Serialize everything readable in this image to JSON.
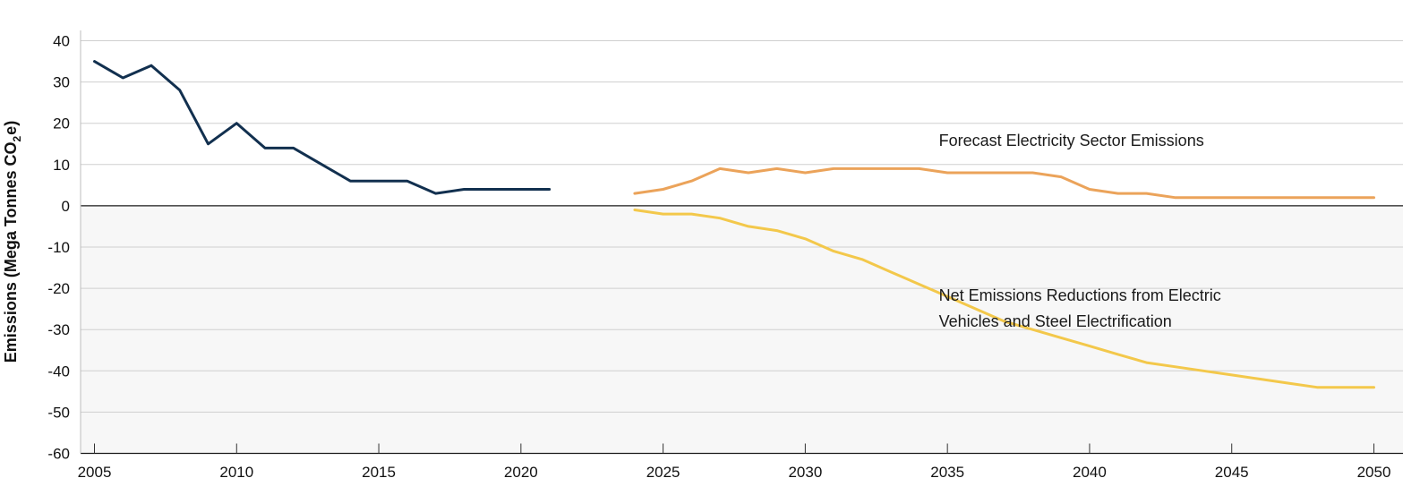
{
  "chart_data": {
    "type": "line",
    "title": "",
    "xlabel": "",
    "ylabel": {
      "main": "Emissions (Mega Tonnes CO",
      "subscript": "2",
      "end": "e)"
    },
    "xlim": [
      2005,
      2050
    ],
    "ylim": [
      -60,
      40
    ],
    "xticks": [
      2005,
      2010,
      2015,
      2020,
      2025,
      2030,
      2035,
      2040,
      2045,
      2050
    ],
    "yticks": [
      40,
      30,
      20,
      10,
      0,
      -10,
      -20,
      -30,
      -40,
      -50,
      -60
    ],
    "grid": true,
    "negative_region_shaded": true,
    "series": [
      {
        "name": "",
        "color": "#12304f",
        "x": [
          2005,
          2006,
          2007,
          2008,
          2009,
          2010,
          2011,
          2012,
          2013,
          2014,
          2015,
          2016,
          2017,
          2018,
          2019,
          2020,
          2021
        ],
        "y": [
          35,
          31,
          34,
          28,
          15,
          20,
          14,
          14,
          10,
          6,
          6,
          6,
          3,
          4,
          4,
          4,
          4
        ]
      },
      {
        "name": "Forecast Electricity Sector Emissions",
        "color": "#eba35a",
        "x": [
          2024,
          2025,
          2026,
          2027,
          2028,
          2029,
          2030,
          2031,
          2032,
          2033,
          2034,
          2035,
          2036,
          2037,
          2038,
          2039,
          2040,
          2041,
          2042,
          2043,
          2044,
          2045,
          2046,
          2047,
          2048,
          2049,
          2050
        ],
        "y": [
          3,
          4,
          6,
          9,
          8,
          9,
          8,
          9,
          9,
          9,
          9,
          8,
          8,
          8,
          8,
          7,
          4,
          3,
          3,
          2,
          2,
          2,
          2,
          2,
          2,
          2,
          2
        ]
      },
      {
        "name": "Net Emissions Reductions from Electric Vehicles and Steel Electrification",
        "color": "#f3c84b",
        "x": [
          2024,
          2025,
          2026,
          2027,
          2028,
          2029,
          2030,
          2031,
          2032,
          2033,
          2034,
          2035,
          2036,
          2037,
          2038,
          2039,
          2040,
          2041,
          2042,
          2043,
          2044,
          2045,
          2046,
          2047,
          2048,
          2049,
          2050
        ],
        "y": [
          -1,
          -2,
          -2,
          -3,
          -5,
          -6,
          -8,
          -11,
          -13,
          -16,
          -19,
          -22,
          -25,
          -28,
          -30,
          -32,
          -34,
          -36,
          -38,
          -39,
          -40,
          -41,
          -42,
          -43,
          -44,
          -44,
          -44
        ]
      }
    ],
    "annotations": [
      {
        "text": "Forecast Electricity Sector Emissions",
        "at_x": 2034.7,
        "at_y": 14.5
      },
      {
        "text": "Net Emissions Reductions from Electric",
        "at_x": 2034.7,
        "at_y": -23
      },
      {
        "text": "Vehicles and Steel Electrification",
        "at_x": 2034.7,
        "at_y": -29.3
      }
    ]
  }
}
